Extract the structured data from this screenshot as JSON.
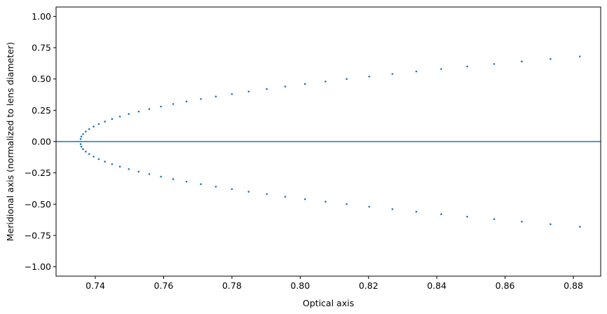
{
  "chart_data": {
    "type": "scatter",
    "title": "",
    "xlabel": "Optical axis",
    "ylabel": "Meridional axis (normalized to lens diameter)",
    "xlim": [
      0.7285,
      0.888
    ],
    "ylim": [
      -1.075,
      1.075
    ],
    "x_ticks": [
      0.74,
      0.76,
      0.78,
      0.8,
      0.82,
      0.84,
      0.86,
      0.88
    ],
    "x_tick_labels": [
      "0.74",
      "0.76",
      "0.78",
      "0.80",
      "0.82",
      "0.84",
      "0.86",
      "0.88"
    ],
    "y_ticks": [
      -1.0,
      -0.75,
      -0.5,
      -0.25,
      0.0,
      0.25,
      0.5,
      0.75,
      1.0
    ],
    "y_tick_labels": [
      "−1.00",
      "−0.75",
      "−0.50",
      "−0.25",
      "0.00",
      "0.25",
      "0.50",
      "0.75",
      "1.00"
    ],
    "grid": false,
    "legend": null,
    "color": "#1f77b4",
    "hline_y": 0.0,
    "series": [
      {
        "points": [
          [
            0.7357,
            0.02
          ],
          [
            0.7359,
            0.04
          ],
          [
            0.7364,
            0.06
          ],
          [
            0.7372,
            0.08
          ],
          [
            0.7382,
            0.1
          ],
          [
            0.7395,
            0.12
          ],
          [
            0.741,
            0.14
          ],
          [
            0.7428,
            0.16
          ],
          [
            0.7449,
            0.18
          ],
          [
            0.7472,
            0.2
          ],
          [
            0.7498,
            0.22
          ],
          [
            0.7527,
            0.24
          ],
          [
            0.7558,
            0.26
          ],
          [
            0.7592,
            0.28
          ],
          [
            0.7628,
            0.3
          ],
          [
            0.7667,
            0.32
          ],
          [
            0.7709,
            0.34
          ],
          [
            0.7753,
            0.36
          ],
          [
            0.78,
            0.38
          ],
          [
            0.7849,
            0.4
          ],
          [
            0.7902,
            0.42
          ],
          [
            0.7956,
            0.44
          ],
          [
            0.8014,
            0.46
          ],
          [
            0.8074,
            0.48
          ],
          [
            0.8136,
            0.5
          ],
          [
            0.8202,
            0.52
          ],
          [
            0.827,
            0.54
          ],
          [
            0.834,
            0.56
          ],
          [
            0.8413,
            0.58
          ],
          [
            0.8489,
            0.6
          ],
          [
            0.8568,
            0.62
          ],
          [
            0.8649,
            0.64
          ],
          [
            0.8733,
            0.66
          ],
          [
            0.8819,
            0.68
          ],
          [
            0.7357,
            -0.02
          ],
          [
            0.7359,
            -0.04
          ],
          [
            0.7364,
            -0.06
          ],
          [
            0.7372,
            -0.08
          ],
          [
            0.7382,
            -0.1
          ],
          [
            0.7395,
            -0.12
          ],
          [
            0.741,
            -0.14
          ],
          [
            0.7428,
            -0.16
          ],
          [
            0.7449,
            -0.18
          ],
          [
            0.7472,
            -0.2
          ],
          [
            0.7498,
            -0.22
          ],
          [
            0.7527,
            -0.24
          ],
          [
            0.7558,
            -0.26
          ],
          [
            0.7592,
            -0.28
          ],
          [
            0.7628,
            -0.3
          ],
          [
            0.7667,
            -0.32
          ],
          [
            0.7709,
            -0.34
          ],
          [
            0.7753,
            -0.36
          ],
          [
            0.78,
            -0.38
          ],
          [
            0.7849,
            -0.4
          ],
          [
            0.7902,
            -0.42
          ],
          [
            0.7956,
            -0.44
          ],
          [
            0.8014,
            -0.46
          ],
          [
            0.8074,
            -0.48
          ],
          [
            0.8136,
            -0.5
          ],
          [
            0.8202,
            -0.52
          ],
          [
            0.827,
            -0.54
          ],
          [
            0.834,
            -0.56
          ],
          [
            0.8413,
            -0.58
          ],
          [
            0.8489,
            -0.6
          ],
          [
            0.8568,
            -0.62
          ],
          [
            0.8649,
            -0.64
          ],
          [
            0.8733,
            -0.66
          ],
          [
            0.8819,
            -0.68
          ]
        ]
      }
    ]
  }
}
